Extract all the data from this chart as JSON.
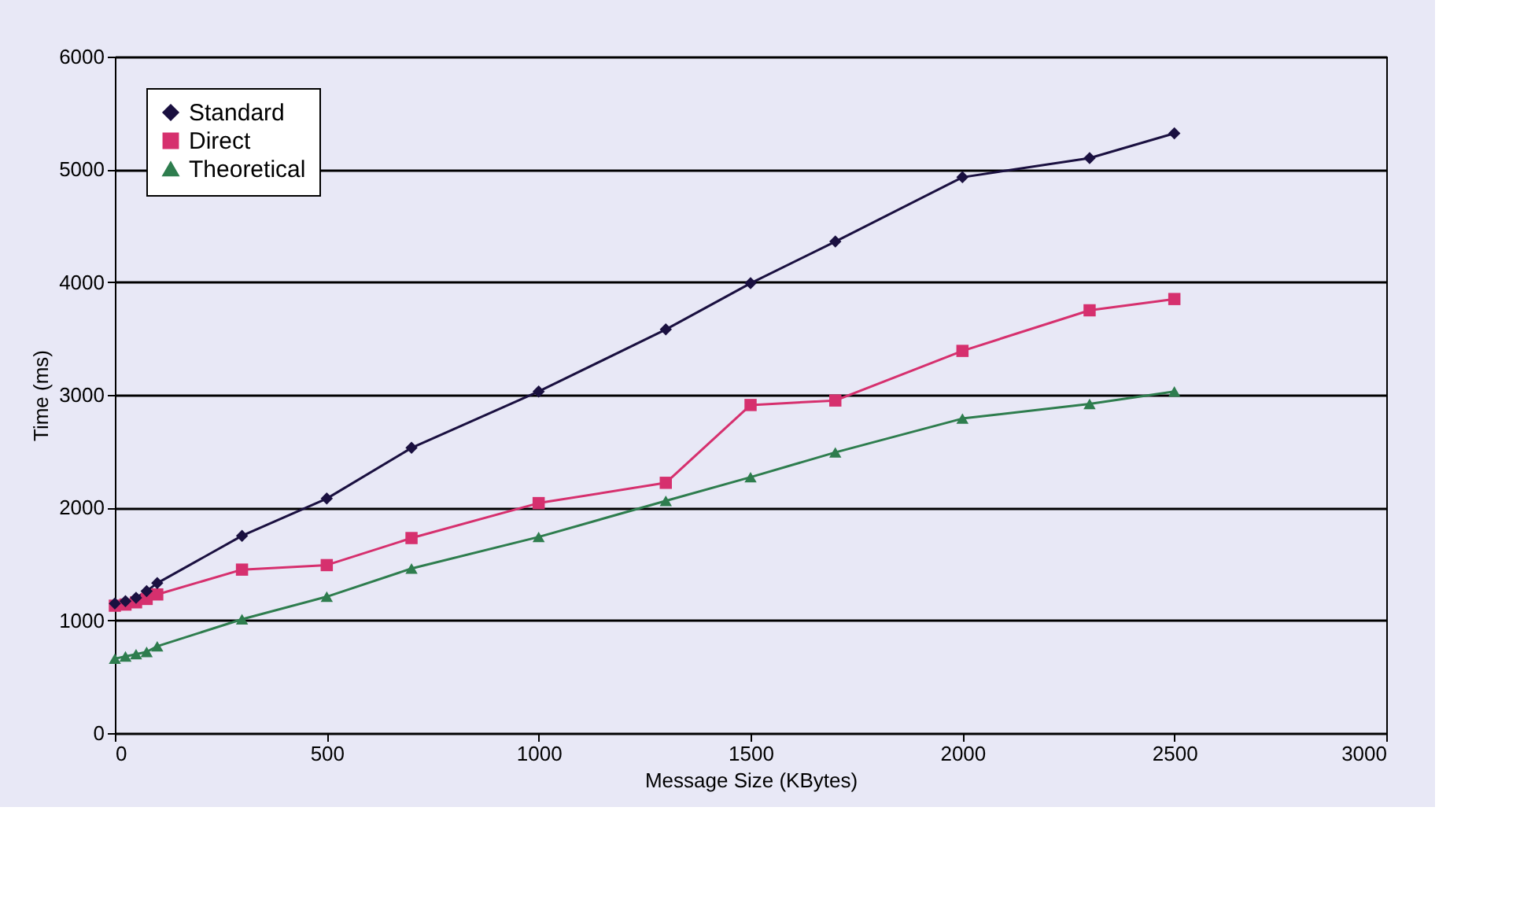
{
  "chart_data": {
    "type": "line",
    "xlabel": "Message Size (KBytes)",
    "ylabel": "Time (ms)",
    "x": [
      0,
      25,
      50,
      75,
      100,
      300,
      500,
      700,
      1000,
      1300,
      1500,
      1700,
      2000,
      2300,
      2500
    ],
    "series": [
      {
        "name": "Standard",
        "color": "#1a1040",
        "marker": "diamond",
        "values": [
          1150,
          1170,
          1200,
          1260,
          1330,
          1750,
          2080,
          2530,
          3030,
          3580,
          3990,
          4360,
          4930,
          5100,
          5320
        ]
      },
      {
        "name": "Direct",
        "color": "#d6306e",
        "marker": "square",
        "values": [
          1130,
          1140,
          1160,
          1190,
          1230,
          1450,
          1490,
          1730,
          2040,
          2220,
          2910,
          2950,
          3390,
          3750,
          3850
        ]
      },
      {
        "name": "Theoretical",
        "color": "#2e7d4e",
        "marker": "triangle",
        "values": [
          660,
          680,
          700,
          720,
          770,
          1010,
          1210,
          1460,
          1740,
          2060,
          2270,
          2490,
          2790,
          2920,
          3030
        ]
      }
    ],
    "xlim": [
      0,
      3000
    ],
    "xticks": [
      0,
      500,
      1000,
      1500,
      2000,
      2500,
      3000
    ],
    "ylim": [
      0,
      6000
    ],
    "yticks": [
      0,
      1000,
      2000,
      3000,
      4000,
      5000,
      6000
    ],
    "grid": "y",
    "legend": "top left",
    "line_style": "solid"
  }
}
